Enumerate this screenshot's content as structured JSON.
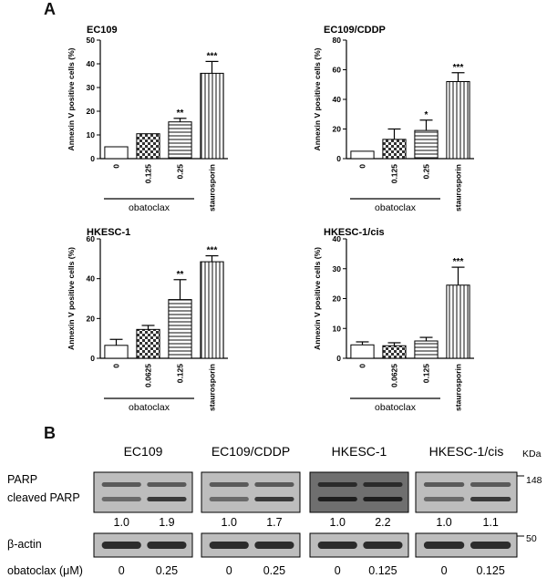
{
  "panel_a": {
    "letter": "A"
  },
  "panel_b": {
    "letter": "B",
    "unit_label": "KDa",
    "cell_lines": [
      "EC109",
      "EC109/CDDP",
      "HKESC-1",
      "HKESC-1/cis"
    ],
    "row_labels": {
      "parp": "PARP",
      "cleaved": "cleaved PARP",
      "actin": "β-actin"
    },
    "markers": [
      "148",
      "50"
    ],
    "ratios": [
      "1.0",
      "1.9",
      "1.0",
      "1.7",
      "1.0",
      "2.2",
      "1.0",
      "1.1"
    ],
    "dose_label": "obatoclax (μM)",
    "doses": [
      "0",
      "0.25",
      "0",
      "0.25",
      "0",
      "0.125",
      "0",
      "0.125"
    ]
  },
  "chart_data": [
    {
      "type": "bar",
      "title": "EC109",
      "ylabel": "Annexin V positive cells (%)",
      "ylim": [
        0,
        50
      ],
      "yticks": [
        "0",
        "10",
        "20",
        "30",
        "40",
        "50"
      ],
      "categories": [
        "0",
        "0.125",
        "0.25",
        "staurosporin"
      ],
      "values": [
        5,
        10.5,
        15.5,
        36
      ],
      "errors": [
        0,
        0,
        1.5,
        5
      ],
      "significance": [
        "",
        "",
        "**",
        "***"
      ],
      "group_label": "obatoclax"
    },
    {
      "type": "bar",
      "title": "EC109/CDDP",
      "ylabel": "Annexin V positive cells (%)",
      "ylim": [
        0,
        80
      ],
      "yticks": [
        "0",
        "20",
        "40",
        "60",
        "80"
      ],
      "categories": [
        "0",
        "0.125",
        "0.25",
        "staurosporin"
      ],
      "values": [
        5,
        13,
        19,
        52
      ],
      "errors": [
        0,
        7,
        7,
        6
      ],
      "significance": [
        "",
        "",
        "*",
        "***"
      ],
      "group_label": "obatoclax"
    },
    {
      "type": "bar",
      "title": "HKESC-1",
      "ylabel": "Annexin V positive cells (%)",
      "ylim": [
        0,
        60
      ],
      "yticks": [
        "0",
        "20",
        "40",
        "60"
      ],
      "categories": [
        "0",
        "0.0625",
        "0.125",
        "staurosporin"
      ],
      "values": [
        6.5,
        14.5,
        29.5,
        48.5
      ],
      "errors": [
        3,
        2,
        10,
        3
      ],
      "significance": [
        "",
        "",
        "**",
        "***"
      ],
      "group_label": "obatoclax"
    },
    {
      "type": "bar",
      "title": "HKESC-1/cis",
      "ylabel": "Annexin V positive cells (%)",
      "ylim": [
        0,
        40
      ],
      "yticks": [
        "0",
        "10",
        "20",
        "30",
        "40"
      ],
      "categories": [
        "0",
        "0.0625",
        "0.125",
        "staurosporin"
      ],
      "values": [
        4.5,
        4.2,
        5.8,
        24.5
      ],
      "errors": [
        1,
        1,
        1.2,
        6
      ],
      "significance": [
        "",
        "",
        "",
        "***"
      ],
      "group_label": "obatoclax"
    }
  ]
}
